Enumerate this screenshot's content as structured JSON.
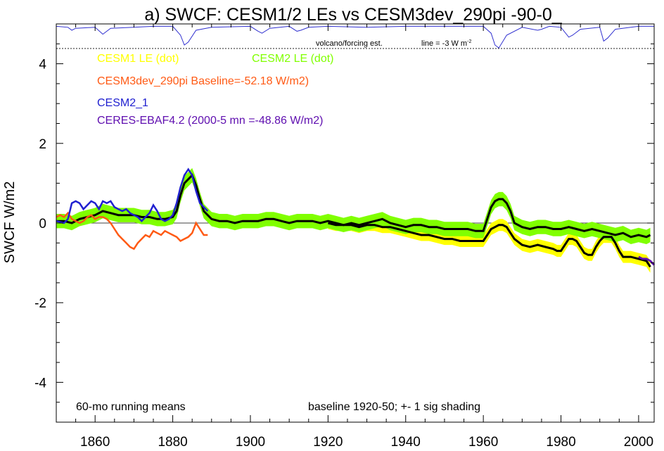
{
  "chart_data": {
    "type": "line",
    "title": "a) SWCF: CESM1/2 LEs vs CESM3dev_290pi -90-0_",
    "ylabel": "SWCF W/m2",
    "xlabel": "",
    "xlim": [
      1850,
      2004
    ],
    "ylim": [
      -5,
      5
    ],
    "x_ticks": [
      1860,
      1880,
      1900,
      1920,
      1940,
      1960,
      1980,
      2000
    ],
    "y_ticks": [
      -4,
      -2,
      0,
      2,
      4
    ],
    "grid": false,
    "legend": [
      {
        "label": "CESM1 LE (dot)",
        "color": "#ffff00"
      },
      {
        "label": "CESM2 LE (dot)",
        "color": "#80ff00"
      },
      {
        "label": "CESM3dev_290pi Baseline=-52.18 W/m2)",
        "color": "#ff5a14"
      },
      {
        "label": "CESM2_1",
        "color": "#2020d0"
      },
      {
        "label": "CERES-EBAF4.2 (2000-5 mn =-48.86 W/m2)",
        "color": "#6010b0"
      }
    ],
    "annotations": {
      "volcano": "volcano/forcing est.",
      "line_prefix": "line = -3 W m",
      "line_sup": "-2",
      "bottom_left": "60-mo running means",
      "bottom_right": "baseline 1920-50; +- 1 sig shading"
    },
    "colors": {
      "cesm1": "#ffff00",
      "cesm2": "#80ff00",
      "cesm3": "#ff5a14",
      "cesm21": "#2020d0",
      "ceres": "#6010b0",
      "mean": "#000000",
      "volcano": "#3030d0"
    },
    "cesm2_mean": {
      "x": [
        1850,
        1852,
        1854,
        1856,
        1858,
        1860,
        1862,
        1864,
        1866,
        1868,
        1870,
        1872,
        1874,
        1876,
        1878,
        1880,
        1881,
        1882,
        1883,
        1884,
        1885,
        1886,
        1887,
        1888,
        1890,
        1892,
        1894,
        1896,
        1898,
        1900,
        1902,
        1904,
        1906,
        1908,
        1910,
        1912,
        1914,
        1916,
        1918,
        1920,
        1922,
        1924,
        1926,
        1928,
        1930,
        1932,
        1934,
        1936,
        1938,
        1940,
        1942,
        1944,
        1946,
        1948,
        1950,
        1952,
        1954,
        1956,
        1958,
        1960,
        1961,
        1962,
        1963,
        1964,
        1965,
        1966,
        1967,
        1968,
        1970,
        1972,
        1974,
        1976,
        1978,
        1980,
        1982,
        1984,
        1986,
        1988,
        1990,
        1992,
        1994,
        1996,
        1998,
        2000,
        2002,
        2003
      ],
      "values": [
        0.05,
        0.05,
        0.0,
        0.1,
        0.15,
        0.2,
        0.3,
        0.25,
        0.2,
        0.2,
        0.2,
        0.15,
        0.15,
        0.1,
        0.1,
        0.15,
        0.3,
        0.7,
        1.0,
        1.1,
        1.2,
        0.95,
        0.6,
        0.3,
        0.1,
        0.05,
        0.05,
        0.0,
        0.05,
        0.05,
        0.05,
        0.1,
        0.1,
        0.05,
        0.0,
        0.05,
        0.05,
        0.05,
        0.0,
        0.05,
        0.0,
        -0.05,
        0.0,
        -0.05,
        0.0,
        0.05,
        0.1,
        0.0,
        -0.05,
        -0.1,
        -0.05,
        -0.05,
        -0.1,
        -0.1,
        -0.15,
        -0.15,
        -0.15,
        -0.15,
        -0.2,
        -0.2,
        0.1,
        0.4,
        0.55,
        0.6,
        0.6,
        0.5,
        0.3,
        0.0,
        -0.1,
        -0.15,
        -0.1,
        -0.1,
        -0.15,
        -0.15,
        -0.1,
        -0.15,
        -0.2,
        -0.15,
        -0.2,
        -0.25,
        -0.3,
        -0.25,
        -0.35,
        -0.3,
        -0.35,
        -0.3
      ],
      "sigma": 0.18
    },
    "cesm1_mean": {
      "x": [
        1920,
        1922,
        1924,
        1926,
        1928,
        1930,
        1932,
        1934,
        1936,
        1938,
        1940,
        1942,
        1944,
        1946,
        1948,
        1950,
        1952,
        1954,
        1956,
        1958,
        1960,
        1961,
        1962,
        1963,
        1964,
        1965,
        1966,
        1967,
        1968,
        1970,
        1972,
        1974,
        1976,
        1978,
        1979,
        1980,
        1981,
        1982,
        1983,
        1984,
        1985,
        1986,
        1987,
        1988,
        1989,
        1990,
        1991,
        1992,
        1993,
        1994,
        1995,
        1996,
        1998,
        2000,
        2002,
        2003
      ],
      "values": [
        0.0,
        -0.05,
        -0.05,
        -0.05,
        -0.1,
        -0.05,
        -0.05,
        -0.1,
        -0.1,
        -0.15,
        -0.2,
        -0.25,
        -0.3,
        -0.3,
        -0.35,
        -0.4,
        -0.4,
        -0.45,
        -0.45,
        -0.45,
        -0.45,
        -0.3,
        -0.15,
        -0.1,
        -0.05,
        -0.05,
        -0.1,
        -0.25,
        -0.4,
        -0.55,
        -0.6,
        -0.55,
        -0.6,
        -0.65,
        -0.7,
        -0.7,
        -0.55,
        -0.4,
        -0.4,
        -0.45,
        -0.6,
        -0.75,
        -0.8,
        -0.8,
        -0.6,
        -0.45,
        -0.35,
        -0.35,
        -0.35,
        -0.5,
        -0.7,
        -0.85,
        -0.85,
        -0.9,
        -0.95,
        -1.1
      ],
      "sigma": 0.15
    },
    "cesm3dev_290pi": {
      "x": [
        1850,
        1851,
        1852,
        1853,
        1854,
        1855,
        1856,
        1857,
        1858,
        1859,
        1860,
        1861,
        1862,
        1863,
        1864,
        1865,
        1866,
        1867,
        1868,
        1869,
        1870,
        1871,
        1872,
        1873,
        1874,
        1875,
        1876,
        1877,
        1878,
        1879,
        1880,
        1881,
        1882,
        1883,
        1884,
        1885,
        1886,
        1887,
        1888,
        1889
      ],
      "values": [
        0.15,
        0.2,
        0.15,
        0.25,
        0.1,
        0.05,
        0.0,
        0.05,
        0.15,
        0.2,
        0.1,
        0.15,
        0.15,
        0.1,
        0.0,
        -0.15,
        -0.3,
        -0.4,
        -0.5,
        -0.6,
        -0.65,
        -0.5,
        -0.4,
        -0.3,
        -0.35,
        -0.2,
        -0.25,
        -0.3,
        -0.2,
        -0.25,
        -0.3,
        -0.35,
        -0.45,
        -0.4,
        -0.35,
        -0.25,
        0.0,
        -0.15,
        -0.3,
        -0.3
      ]
    },
    "cesm2_1": {
      "x": [
        1850,
        1852,
        1853,
        1854,
        1855,
        1856,
        1857,
        1858,
        1859,
        1860,
        1861,
        1862,
        1863,
        1864,
        1865,
        1866,
        1867,
        1868,
        1869,
        1870,
        1871,
        1872,
        1873,
        1874,
        1875,
        1876,
        1877,
        1878,
        1879,
        1880,
        1881,
        1882,
        1883,
        1884,
        1885,
        1886,
        1887,
        1888,
        1889
      ],
      "values": [
        0.05,
        0.0,
        0.1,
        0.5,
        0.55,
        0.5,
        0.35,
        0.45,
        0.55,
        0.5,
        0.35,
        0.55,
        0.5,
        0.55,
        0.4,
        0.35,
        0.3,
        0.35,
        0.25,
        0.2,
        0.15,
        0.05,
        0.15,
        0.25,
        0.45,
        0.3,
        0.1,
        0.05,
        0.1,
        0.2,
        0.5,
        0.9,
        1.2,
        1.35,
        1.2,
        0.8,
        0.5,
        0.4,
        0.3
      ]
    },
    "ceres": {
      "x": [
        2000,
        2001,
        2002,
        2003,
        2004
      ],
      "values": [
        -0.85,
        -0.9,
        -0.9,
        -0.95,
        -1.05
      ]
    },
    "volcano_estimate": {
      "x": [
        1850,
        1853,
        1854,
        1855,
        1860,
        1862,
        1864,
        1870,
        1875,
        1880,
        1882,
        1883,
        1884,
        1886,
        1890,
        1900,
        1902,
        1903,
        1905,
        1910,
        1912,
        1913,
        1915,
        1920,
        1930,
        1940,
        1950,
        1960,
        1962,
        1963,
        1964,
        1966,
        1970,
        1974,
        1975,
        1977,
        1980,
        1982,
        1983,
        1985,
        1990,
        1991,
        1992,
        1994,
        2000,
        2004
      ],
      "values": [
        -0.05,
        -0.1,
        -0.25,
        -0.15,
        -0.1,
        -0.45,
        -0.15,
        -0.1,
        -0.05,
        -0.05,
        -0.5,
        -1.0,
        -0.85,
        -0.25,
        -0.1,
        -0.05,
        -0.3,
        -0.4,
        -0.15,
        -0.05,
        -0.3,
        -0.25,
        -0.1,
        -0.05,
        -0.1,
        -0.05,
        -0.05,
        -0.05,
        -0.4,
        -1.0,
        -1.15,
        -0.5,
        -0.1,
        -0.25,
        -0.2,
        -0.05,
        -0.1,
        -0.6,
        -0.5,
        -0.2,
        -0.1,
        -0.8,
        -0.65,
        -0.2,
        -0.05,
        -0.05
      ]
    }
  }
}
